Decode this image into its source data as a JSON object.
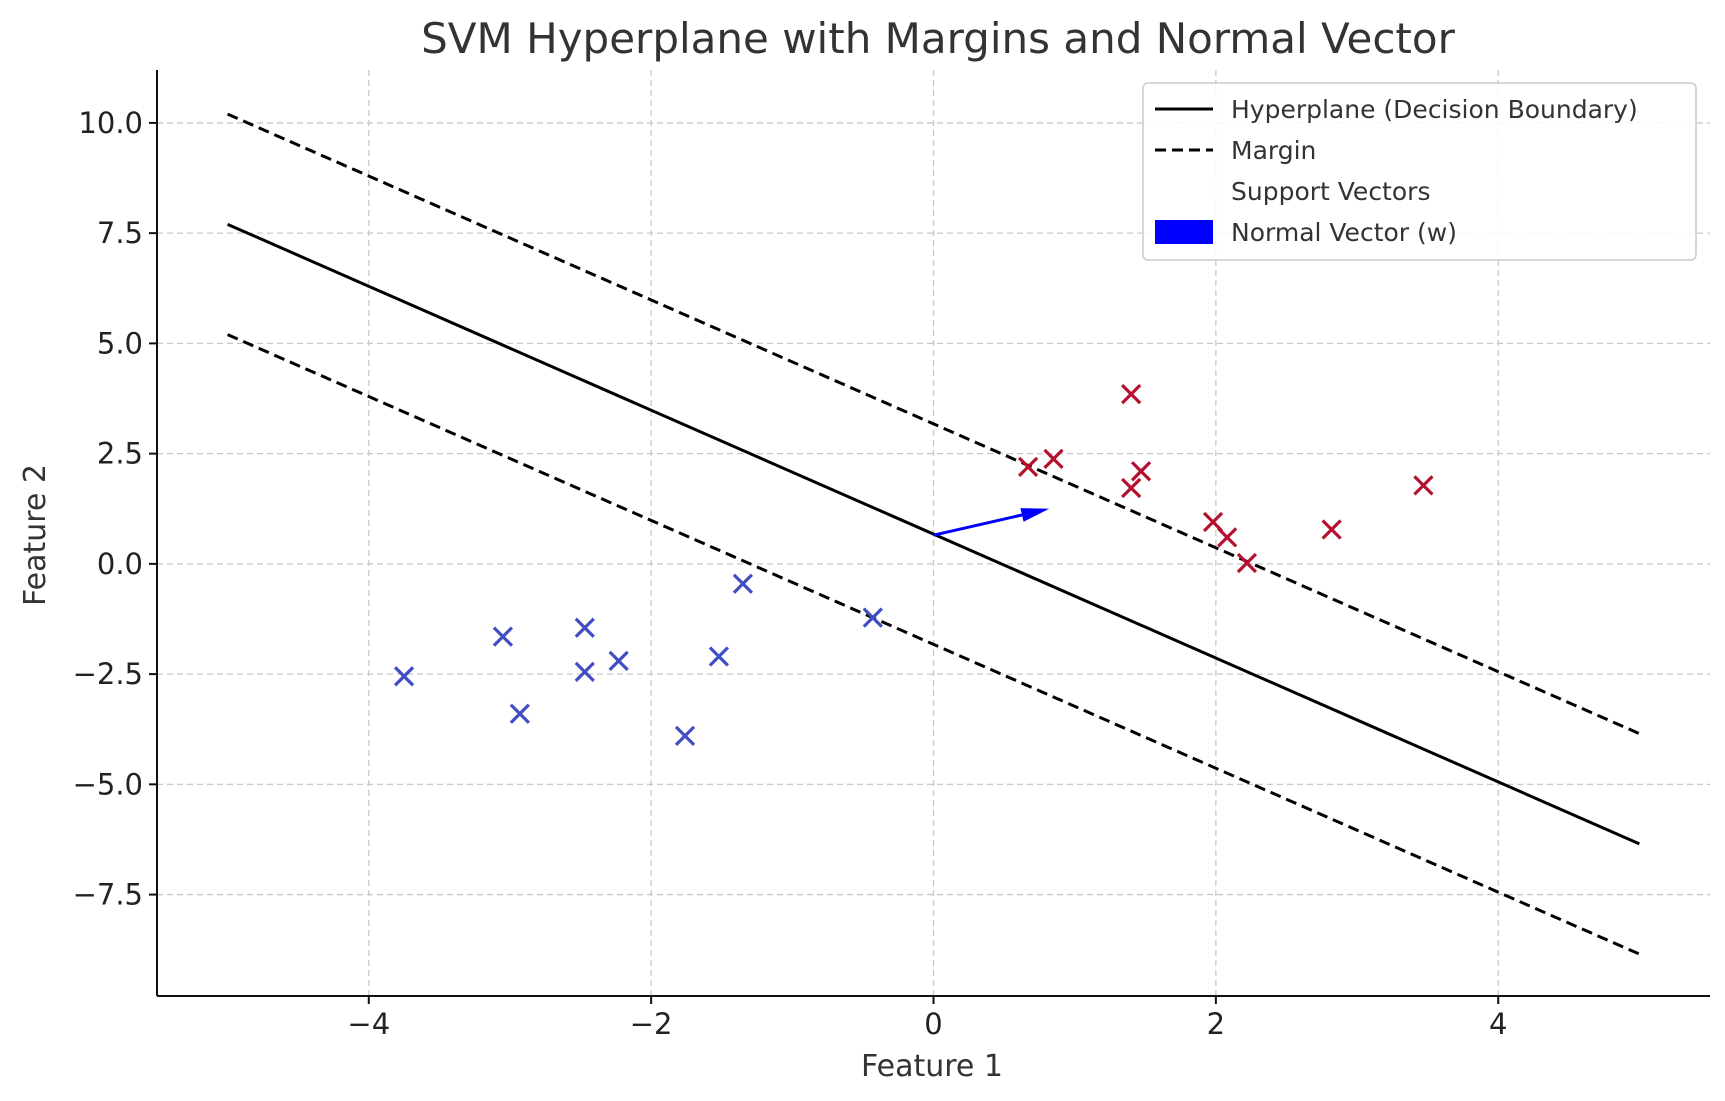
{
  "chart_data": {
    "type": "scatter",
    "title": "SVM Hyperplane with Margins and Normal Vector",
    "xlabel": "Feature 1",
    "ylabel": "Feature 2",
    "xlim": [
      -5.5,
      5.5
    ],
    "ylim": [
      -9.8,
      11.2
    ],
    "xticks": [
      -4,
      -2,
      0,
      2,
      4
    ],
    "xtick_labels": [
      "−4",
      "−2",
      "0",
      "2",
      "4"
    ],
    "yticks": [
      10.0,
      7.5,
      5.0,
      2.5,
      0.0,
      -2.5,
      -5.0,
      -7.5
    ],
    "ytick_labels": [
      "10.0",
      "7.5",
      "5.0",
      "2.5",
      "0.0",
      "−2.5",
      "−5.0",
      "−7.5"
    ],
    "grid": true,
    "legend_position": "top-right",
    "lines": [
      {
        "name": "Hyperplane (Decision Boundary)",
        "style": "solid",
        "color": "#000000",
        "x": [
          -5,
          5
        ],
        "y": [
          7.7,
          -6.35
        ]
      },
      {
        "name": "Margin",
        "style": "dashed",
        "color": "#000000",
        "x": [
          -5,
          5
        ],
        "y": [
          10.2,
          -3.85
        ]
      },
      {
        "name": "",
        "style": "dashed",
        "color": "#000000",
        "x": [
          -5,
          5
        ],
        "y": [
          5.2,
          -8.85
        ]
      }
    ],
    "series": [
      {
        "color": "#3f4ec2",
        "marker": "x",
        "points": [
          [
            -3.75,
            -2.55
          ],
          [
            -3.05,
            -1.65
          ],
          [
            -2.93,
            -3.4
          ],
          [
            -2.47,
            -1.45
          ],
          [
            -2.47,
            -2.45
          ],
          [
            -2.23,
            -2.2
          ],
          [
            -1.76,
            -3.9
          ],
          [
            -1.52,
            -2.1
          ],
          [
            -1.35,
            -0.45
          ],
          [
            -0.43,
            -1.22
          ]
        ]
      },
      {
        "color": "#b5102d",
        "marker": "x",
        "points": [
          [
            0.67,
            2.2
          ],
          [
            0.85,
            2.38
          ],
          [
            1.4,
            3.85
          ],
          [
            1.4,
            1.72
          ],
          [
            1.47,
            2.1
          ],
          [
            1.98,
            0.95
          ],
          [
            2.08,
            0.6
          ],
          [
            2.22,
            0.02
          ],
          [
            2.82,
            0.78
          ],
          [
            3.47,
            1.78
          ]
        ]
      }
    ],
    "normal_vector": {
      "name": "Normal Vector (w)",
      "color": "#0000ff",
      "x": [
        0,
        0.82
      ],
      "y": [
        0.65,
        1.25
      ]
    },
    "legend": [
      {
        "label": "Hyperplane (Decision Boundary)",
        "kind": "solid-line"
      },
      {
        "label": "Margin",
        "kind": "dashed-line"
      },
      {
        "label": "Support Vectors",
        "kind": "none"
      },
      {
        "label": "Normal Vector (w)",
        "kind": "patch",
        "color": "#0000ff"
      }
    ]
  }
}
